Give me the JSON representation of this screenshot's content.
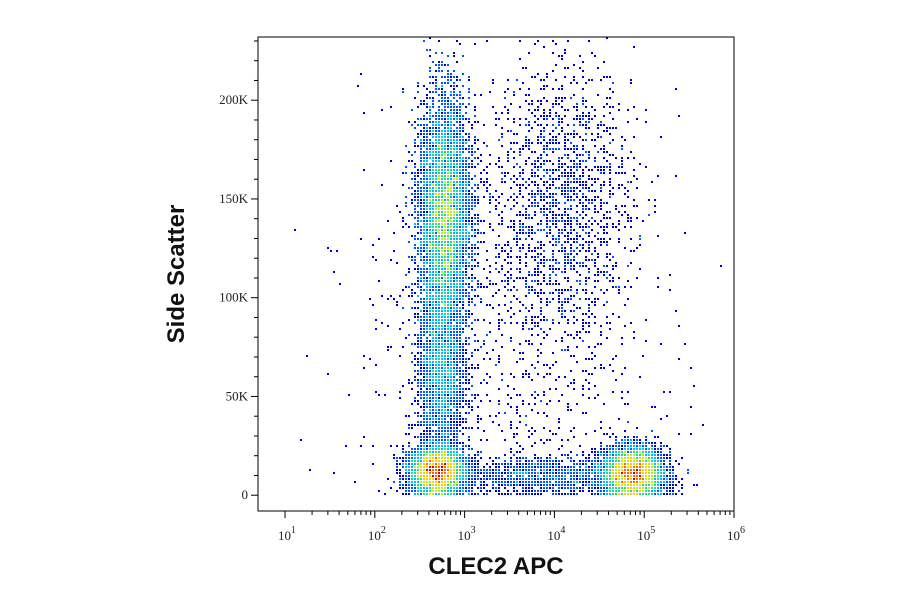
{
  "chart_data": {
    "type": "scatter",
    "subtype": "flow-cytometry-density-dot-plot",
    "title": "",
    "xlabel": "CLEC2 APC",
    "ylabel": "Side Scatter",
    "x_scale": "log",
    "xlim": [
      5,
      1000000
    ],
    "ylim": [
      -8000,
      232000
    ],
    "x_ticks": [
      {
        "value": 10,
        "base": "10",
        "exp": "1"
      },
      {
        "value": 100,
        "base": "10",
        "exp": "2"
      },
      {
        "value": 1000,
        "base": "10",
        "exp": "3"
      },
      {
        "value": 10000,
        "base": "10",
        "exp": "4"
      },
      {
        "value": 100000,
        "base": "10",
        "exp": "5"
      },
      {
        "value": 1000000,
        "base": "10",
        "exp": "6"
      }
    ],
    "y_ticks": [
      {
        "value": 0,
        "label": "0"
      },
      {
        "value": 50000,
        "label": "50K"
      },
      {
        "value": 100000,
        "label": "100K"
      },
      {
        "value": 150000,
        "label": "150K"
      },
      {
        "value": 200000,
        "label": "200K"
      }
    ],
    "grid": false,
    "legend": "none",
    "color_scale": [
      "#0000cc",
      "#0055ff",
      "#00bbff",
      "#22dd88",
      "#bbee22",
      "#ffcc00",
      "#ff6600",
      "#dd0000"
    ],
    "populations": [
      {
        "x_center": 600,
        "y_center": 140000,
        "x_spread_log10": 0.14,
        "y_spread": 30000,
        "weight": 0.34
      },
      {
        "x_center": 550,
        "y_center": 60000,
        "x_spread_log10": 0.13,
        "y_spread": 22000,
        "weight": 0.1
      },
      {
        "x_center": 500,
        "y_center": 12000,
        "x_spread_log10": 0.15,
        "y_spread": 6000,
        "weight": 0.2
      },
      {
        "x_center": 75000,
        "y_center": 11000,
        "x_spread_log10": 0.17,
        "y_spread": 6500,
        "weight": 0.22
      },
      {
        "x_center": 12000,
        "y_center": 150000,
        "x_spread_log10": 0.4,
        "y_spread": 35000,
        "weight": 0.06
      },
      {
        "x_center": 8000,
        "y_center": 10000,
        "x_spread_log10": 0.5,
        "y_spread": 5000,
        "weight": 0.04
      },
      {
        "x_center": 3000,
        "y_center": 80000,
        "x_spread_log10": 0.8,
        "y_spread": 60000,
        "weight": 0.04
      }
    ]
  }
}
